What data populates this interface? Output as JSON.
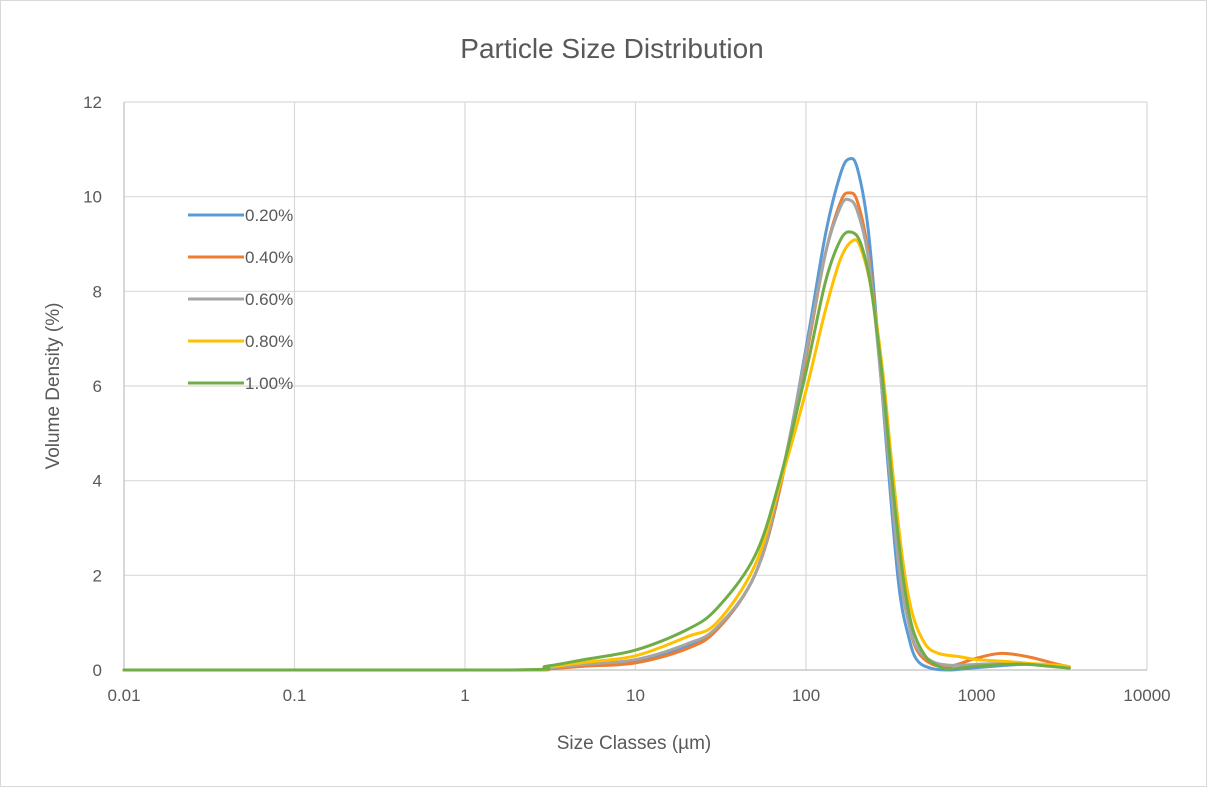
{
  "chart_data": {
    "type": "line",
    "title": "Particle Size Distribution",
    "xlabel": "Size Classes (µm)",
    "ylabel": "Volume Density (%)",
    "x_scale": "log",
    "xlim": [
      0.01,
      10000
    ],
    "ylim": [
      0,
      12
    ],
    "x_ticks": [
      "0.01",
      "0.1",
      "1",
      "10",
      "100",
      "1000",
      "10000"
    ],
    "y_ticks": [
      "0",
      "2",
      "4",
      "6",
      "8",
      "10",
      "12"
    ],
    "grid": true,
    "legend_position": "upper-left",
    "series": [
      {
        "name": "0.20%",
        "color": "#5b9bd5",
        "points": [
          [
            0.01,
            0
          ],
          [
            1.8,
            0
          ],
          [
            3,
            0.05
          ],
          [
            5,
            0.1
          ],
          [
            10,
            0.2
          ],
          [
            20,
            0.5
          ],
          [
            30,
            0.85
          ],
          [
            50,
            2.0
          ],
          [
            70,
            3.8
          ],
          [
            100,
            6.8
          ],
          [
            130,
            9.2
          ],
          [
            160,
            10.5
          ],
          [
            180,
            10.8
          ],
          [
            200,
            10.6
          ],
          [
            230,
            9.4
          ],
          [
            260,
            7.3
          ],
          [
            300,
            4.5
          ],
          [
            350,
            1.8
          ],
          [
            400,
            0.7
          ],
          [
            450,
            0.2
          ],
          [
            550,
            0.03
          ],
          [
            700,
            0
          ],
          [
            1000,
            0.05
          ],
          [
            1500,
            0.1
          ],
          [
            2000,
            0.12
          ],
          [
            3000,
            0.08
          ],
          [
            3500,
            0.05
          ]
        ]
      },
      {
        "name": "0.40%",
        "color": "#ed7d31",
        "points": [
          [
            0.01,
            0
          ],
          [
            1.8,
            0
          ],
          [
            3,
            0.02
          ],
          [
            5,
            0.08
          ],
          [
            10,
            0.15
          ],
          [
            20,
            0.45
          ],
          [
            30,
            0.85
          ],
          [
            50,
            2.0
          ],
          [
            70,
            3.8
          ],
          [
            100,
            6.6
          ],
          [
            130,
            8.8
          ],
          [
            160,
            9.9
          ],
          [
            180,
            10.08
          ],
          [
            200,
            9.9
          ],
          [
            230,
            8.9
          ],
          [
            260,
            7.2
          ],
          [
            300,
            4.8
          ],
          [
            350,
            2.2
          ],
          [
            400,
            1.0
          ],
          [
            450,
            0.4
          ],
          [
            550,
            0.12
          ],
          [
            700,
            0.08
          ],
          [
            1000,
            0.25
          ],
          [
            1400,
            0.35
          ],
          [
            2000,
            0.28
          ],
          [
            3000,
            0.12
          ],
          [
            3500,
            0.07
          ]
        ]
      },
      {
        "name": "0.60%",
        "color": "#a5a5a5",
        "points": [
          [
            0.01,
            0
          ],
          [
            1.8,
            0
          ],
          [
            3,
            0.04
          ],
          [
            5,
            0.12
          ],
          [
            10,
            0.22
          ],
          [
            20,
            0.55
          ],
          [
            30,
            0.9
          ],
          [
            50,
            2.0
          ],
          [
            70,
            3.9
          ],
          [
            100,
            6.7
          ],
          [
            130,
            8.8
          ],
          [
            160,
            9.8
          ],
          [
            180,
            9.93
          ],
          [
            200,
            9.7
          ],
          [
            230,
            8.8
          ],
          [
            260,
            7.1
          ],
          [
            300,
            4.7
          ],
          [
            350,
            2.2
          ],
          [
            400,
            1.0
          ],
          [
            450,
            0.45
          ],
          [
            550,
            0.18
          ],
          [
            700,
            0.1
          ],
          [
            1000,
            0.12
          ],
          [
            1500,
            0.14
          ],
          [
            2000,
            0.13
          ],
          [
            3000,
            0.08
          ],
          [
            3500,
            0.05
          ]
        ]
      },
      {
        "name": "0.80%",
        "color": "#ffc000",
        "points": [
          [
            0.01,
            0
          ],
          [
            1.8,
            0
          ],
          [
            3,
            0.06
          ],
          [
            5,
            0.16
          ],
          [
            10,
            0.3
          ],
          [
            20,
            0.7
          ],
          [
            30,
            1.0
          ],
          [
            50,
            2.2
          ],
          [
            70,
            3.9
          ],
          [
            100,
            5.9
          ],
          [
            130,
            7.6
          ],
          [
            160,
            8.7
          ],
          [
            190,
            9.08
          ],
          [
            210,
            8.9
          ],
          [
            240,
            8.1
          ],
          [
            280,
            6.4
          ],
          [
            320,
            4.3
          ],
          [
            370,
            2.3
          ],
          [
            420,
            1.2
          ],
          [
            500,
            0.55
          ],
          [
            600,
            0.35
          ],
          [
            800,
            0.28
          ],
          [
            1000,
            0.22
          ],
          [
            1500,
            0.18
          ],
          [
            2000,
            0.14
          ],
          [
            3000,
            0.1
          ],
          [
            3500,
            0.07
          ]
        ]
      },
      {
        "name": "1.00%",
        "color": "#70ad47",
        "points": [
          [
            0.01,
            0
          ],
          [
            1.8,
            0
          ],
          [
            3,
            0.08
          ],
          [
            5,
            0.22
          ],
          [
            10,
            0.42
          ],
          [
            20,
            0.85
          ],
          [
            30,
            1.3
          ],
          [
            50,
            2.4
          ],
          [
            70,
            4.0
          ],
          [
            100,
            6.3
          ],
          [
            130,
            8.2
          ],
          [
            160,
            9.1
          ],
          [
            185,
            9.25
          ],
          [
            210,
            9.0
          ],
          [
            240,
            8.1
          ],
          [
            280,
            6.2
          ],
          [
            320,
            4.0
          ],
          [
            370,
            2.0
          ],
          [
            420,
            0.9
          ],
          [
            500,
            0.3
          ],
          [
            600,
            0.08
          ],
          [
            700,
            0.02
          ],
          [
            1000,
            0.08
          ],
          [
            1500,
            0.12
          ],
          [
            2000,
            0.12
          ],
          [
            3000,
            0.06
          ],
          [
            3500,
            0.04
          ]
        ]
      }
    ]
  }
}
